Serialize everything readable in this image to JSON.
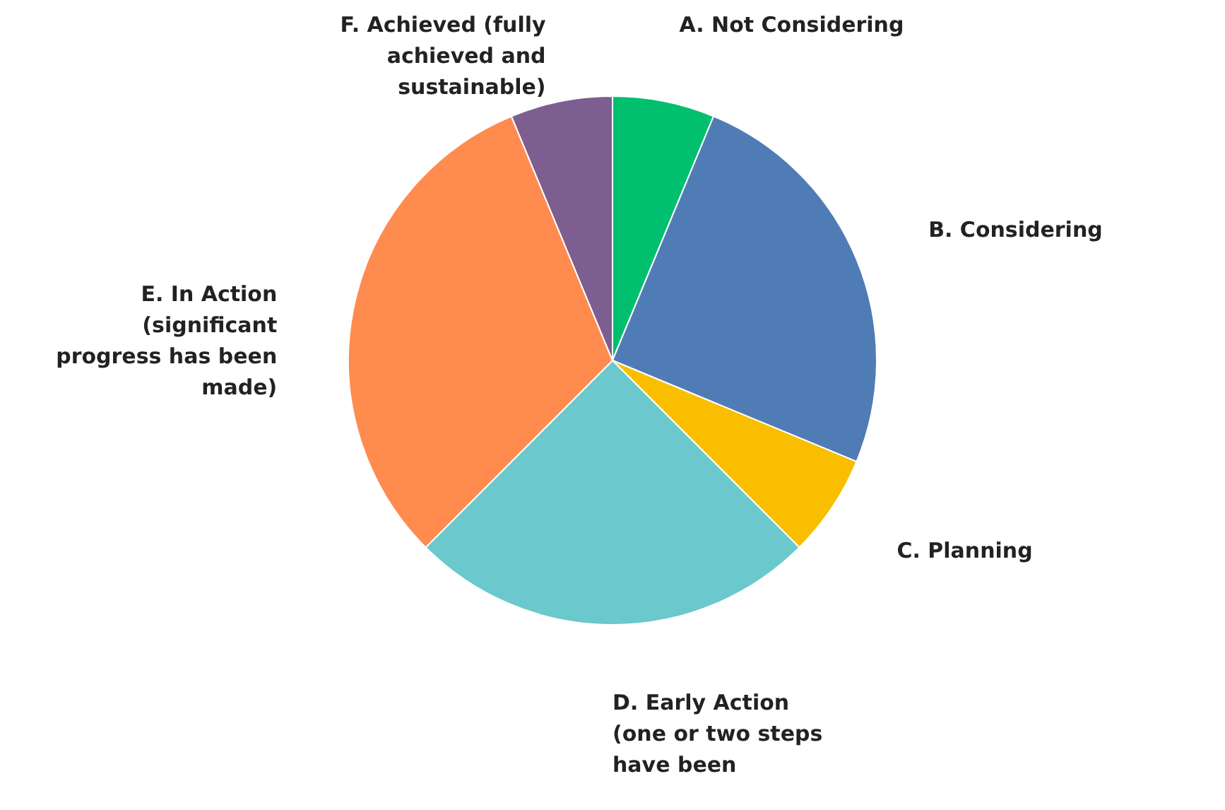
{
  "chart_data": {
    "type": "pie",
    "categories": [
      "A. Not Considering",
      "B.    Considering",
      "C.    Planning",
      "D. Early Action (one or two steps have been",
      "E. In Action (significant progress has been made)",
      "F. Achieved (fully achieved and sustainable)"
    ],
    "values": [
      6.25,
      25,
      6.25,
      25,
      31.25,
      6.25
    ],
    "colors": [
      "#00bf6f",
      "#507cb6",
      "#f9be00",
      "#6bc8cd",
      "#ff8b4f",
      "#7d5e90"
    ]
  }
}
